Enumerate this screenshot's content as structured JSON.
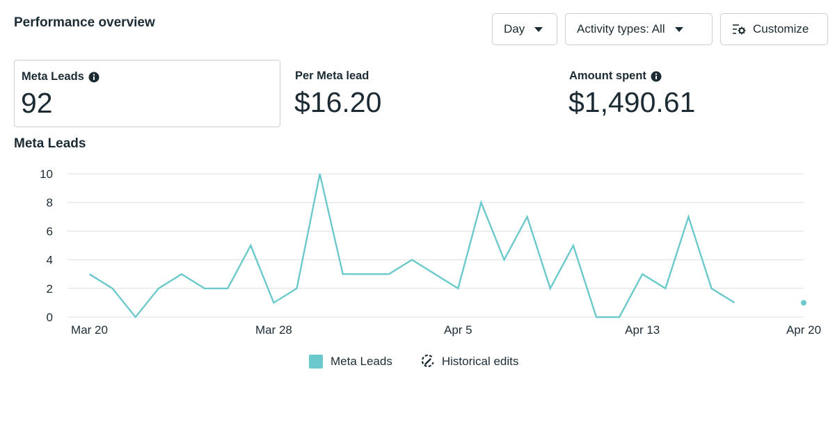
{
  "header": {
    "title": "Performance overview",
    "day_label": "Day",
    "activity_label": "Activity types: All",
    "customize_label": "Customize"
  },
  "metrics": [
    {
      "label": "Meta Leads",
      "value": "92",
      "info": true,
      "selected": true
    },
    {
      "label": "Per Meta lead",
      "value": "$16.20",
      "info": false,
      "selected": false
    },
    {
      "label": "Amount spent",
      "value": "$1,490.61",
      "info": true,
      "selected": false
    }
  ],
  "chart_title": "Meta Leads",
  "legend": {
    "series_label": "Meta Leads",
    "edits_label": "Historical edits"
  },
  "colors": {
    "series": "#6cc9cb",
    "grid": "#dcdfe3",
    "text": "#1c2b33"
  },
  "chart_data": {
    "type": "line",
    "title": "Meta Leads",
    "xlabel": "",
    "ylabel": "",
    "ylim": [
      0,
      10
    ],
    "yticks": [
      "0",
      "2",
      "4",
      "6",
      "8",
      "10"
    ],
    "xticks": [
      {
        "label": "Mar 20",
        "index": 0
      },
      {
        "label": "Mar 28",
        "index": 8
      },
      {
        "label": "Apr 5",
        "index": 16
      },
      {
        "label": "Apr 13",
        "index": 24
      },
      {
        "label": "Apr 20",
        "index": 31
      }
    ],
    "grid": true,
    "legend_position": "bottom",
    "series": [
      {
        "name": "Meta Leads",
        "values": [
          3,
          2,
          0,
          2,
          3,
          2,
          2,
          5,
          1,
          2,
          10,
          3,
          3,
          3,
          4,
          3,
          2,
          8,
          4,
          7,
          2,
          5,
          0,
          0,
          3,
          2,
          7,
          2,
          1,
          null,
          null,
          1
        ]
      }
    ]
  }
}
